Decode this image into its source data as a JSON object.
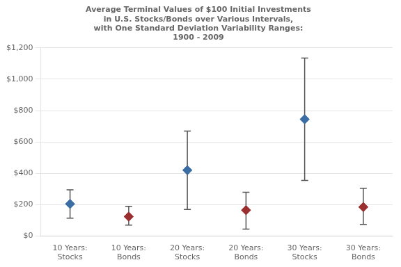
{
  "chart_data": {
    "type": "errorbar",
    "title": "Average Terminal Values of $100 Initial Investments\nin U.S. Stocks/Bonds over Various Intervals,\nwith One Standard Deviation Variability Ranges:\n1900 - 2009",
    "categories": [
      "10 Years:\nStocks",
      "10 Years:\nBonds",
      "20 Years:\nStocks",
      "20 Years:\nBonds",
      "30 Years:\nStocks",
      "30 Years:\nBonds"
    ],
    "values": [
      205,
      125,
      420,
      165,
      745,
      185
    ],
    "error_low": [
      115,
      70,
      170,
      45,
      355,
      75
    ],
    "error_high": [
      295,
      190,
      670,
      280,
      1135,
      305
    ],
    "colors": [
      "#3a6ea5",
      "#9b2f2f",
      "#3a6ea5",
      "#9b2f2f",
      "#3a6ea5",
      "#9b2f2f"
    ],
    "marker": "diamond",
    "ylim": [
      0,
      1200
    ],
    "yticks": [
      {
        "value": 0,
        "label": "$0"
      },
      {
        "value": 200,
        "label": "$200"
      },
      {
        "value": 400,
        "label": "$400"
      },
      {
        "value": 600,
        "label": "$600"
      },
      {
        "value": 800,
        "label": "$800"
      },
      {
        "value": 1000,
        "label": "$1,000"
      },
      {
        "value": 1200,
        "label": "$1,200"
      }
    ],
    "grid": true
  }
}
